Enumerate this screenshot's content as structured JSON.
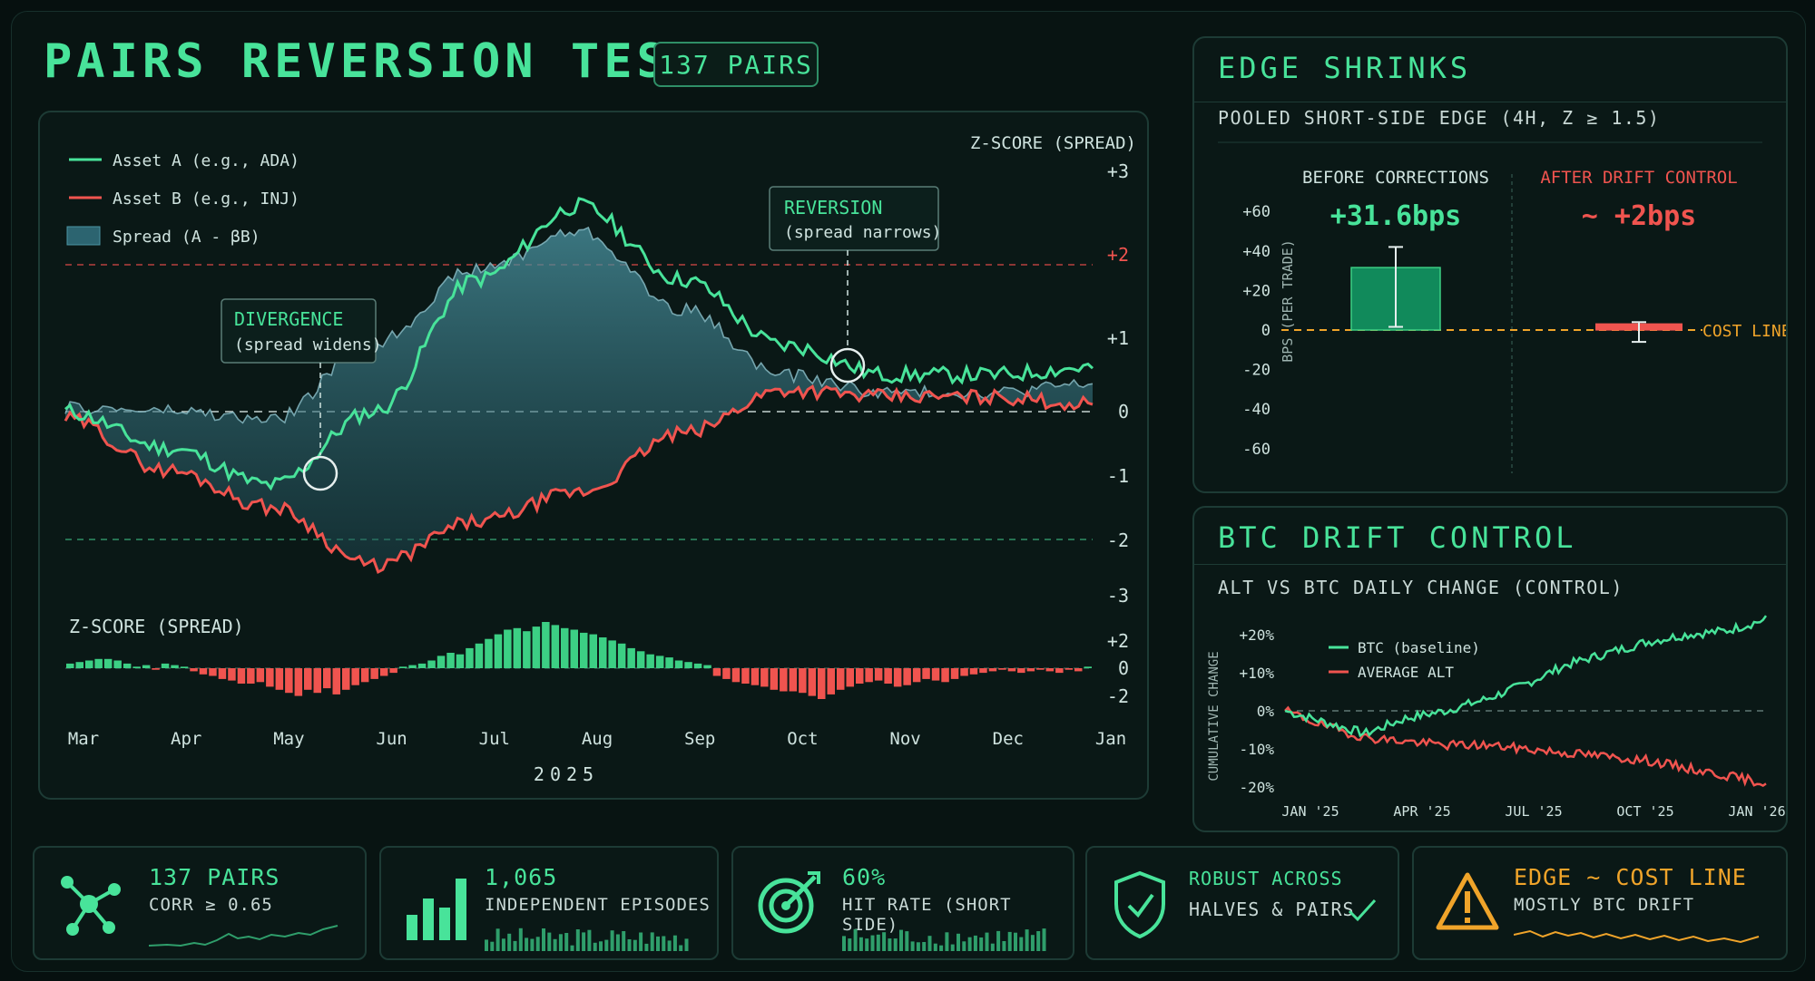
{
  "header": {
    "title": "PAIRS REVERSION TEST",
    "badge": "137 PAIRS"
  },
  "colors": {
    "green": "#48e39a",
    "red": "#f0544f",
    "orange": "#f0a42a",
    "spread_fill": "#3d7f8c",
    "grid": "#33524c"
  },
  "main_chart": {
    "legend": [
      "Asset A (e.g., ADA)",
      "Asset B (e.g., INJ)",
      "Spread (A - βB)"
    ],
    "axis_title": "Z-SCORE (SPREAD)",
    "yticks": [
      "+3",
      "+2",
      "+1",
      "0",
      "-1",
      "-2",
      "-3"
    ],
    "divergence": {
      "title": "DIVERGENCE",
      "sub": "(spread widens)"
    },
    "reversion": {
      "title": "REVERSION",
      "sub": "(spread narrows)"
    },
    "sub_title": "Z-SCORE (SPREAD)",
    "sub_yticks": [
      "+2",
      "0",
      "-2"
    ],
    "xticks": [
      "Mar",
      "Apr",
      "May",
      "Jun",
      "Jul",
      "Aug",
      "Sep",
      "Oct",
      "Nov",
      "Dec",
      "Jan"
    ],
    "year": "2025"
  },
  "edge_panel": {
    "title": "EDGE SHRINKS",
    "subtitle": "POOLED SHORT-SIDE EDGE (4H, Z ≥ 1.5)",
    "before_label": "BEFORE CORRECTIONS",
    "before_value": "+31.6bps",
    "after_label": "AFTER DRIFT CONTROL",
    "after_value": "~ +2bps",
    "ylabel": "BPS (PER TRADE)",
    "yticks": [
      "+60",
      "+40",
      "+20",
      "0",
      "-20",
      "-40",
      "-60"
    ],
    "cost_line": "COST LINE"
  },
  "btc_panel": {
    "title": "BTC DRIFT CONTROL",
    "subtitle": "ALT VS BTC DAILY CHANGE (CONTROL)",
    "ylabel": "CUMULATIVE CHANGE",
    "yticks": [
      "+20%",
      "+10%",
      "0%",
      "-10%",
      "-20%"
    ],
    "xticks": [
      "JAN '25",
      "APR '25",
      "JUL '25",
      "OCT '25",
      "JAN '26"
    ],
    "legend": [
      "BTC (baseline)",
      "AVERAGE ALT"
    ]
  },
  "tiles": [
    {
      "main": "137 PAIRS",
      "sub": "CORR ≥ 0.65",
      "icon": "network-icon"
    },
    {
      "main": "1,065",
      "sub": "INDEPENDENT EPISODES",
      "icon": "bar-chart-icon"
    },
    {
      "main": "60%",
      "sub": "HIT RATE (SHORT SIDE)",
      "icon": "target-icon"
    },
    {
      "main": "ROBUST ACROSS",
      "sub": "HALVES & PAIRS",
      "icon": "shield-icon"
    },
    {
      "main": "EDGE ~ COST LINE",
      "sub": "MOSTLY BTC DRIFT",
      "icon": "warning-icon"
    }
  ],
  "chart_data": [
    {
      "type": "line",
      "ylabel": "Z-SCORE (SPREAD)",
      "x": [
        "Mar",
        "Apr",
        "May",
        "Jun",
        "Jul",
        "Aug",
        "Sep",
        "Oct",
        "Nov",
        "Dec",
        "Jan"
      ],
      "series": [
        {
          "name": "Asset A (e.g., ADA)",
          "values": [
            0.0,
            -0.5,
            -1.0,
            0.0,
            1.8,
            2.8,
            1.8,
            0.9,
            0.5,
            0.5,
            0.6
          ]
        },
        {
          "name": "Asset B (e.g., INJ)",
          "values": [
            -0.1,
            -0.8,
            -1.3,
            -2.1,
            -1.5,
            -1.1,
            -0.3,
            0.3,
            0.2,
            0.2,
            0.1
          ]
        },
        {
          "name": "Spread (A - βB)",
          "values": [
            0.1,
            0.3,
            0.3,
            2.1,
            3.3,
            3.9,
            2.1,
            0.6,
            0.3,
            0.3,
            0.5
          ]
        }
      ],
      "ylim": [
        -3,
        3
      ],
      "legend": "top-left"
    },
    {
      "type": "bar",
      "ylabel": "Z-SCORE (SPREAD)",
      "values": [
        0.3,
        0.4,
        0.5,
        0.6,
        0.6,
        0.5,
        0.3,
        0.1,
        0.2,
        -0.1,
        0.3,
        0.2,
        0.1,
        -0.2,
        -0.4,
        -0.5,
        -0.7,
        -0.8,
        -1.0,
        -1.0,
        -0.9,
        -1.2,
        -1.4,
        -1.6,
        -1.8,
        -1.4,
        -1.6,
        -1.3,
        -1.7,
        -1.4,
        -1.1,
        -0.9,
        -0.7,
        -0.5,
        -0.3,
        0.1,
        0.2,
        0.3,
        0.5,
        0.8,
        1.0,
        0.9,
        1.3,
        1.6,
        1.9,
        2.2,
        2.5,
        2.6,
        2.4,
        2.7,
        3.0,
        2.8,
        2.6,
        2.5,
        2.3,
        2.2,
        2.0,
        1.8,
        1.6,
        1.3,
        1.1,
        0.9,
        0.8,
        0.7,
        0.5,
        0.4,
        0.3,
        0.2,
        -0.5,
        -0.7,
        -0.9,
        -1.0,
        -1.1,
        -1.2,
        -1.4,
        -1.5,
        -1.5,
        -1.6,
        -1.8,
        -2.0,
        -1.7,
        -1.4,
        -1.2,
        -1.0,
        -0.9,
        -0.8,
        -1.0,
        -1.2,
        -1.1,
        -0.9,
        -0.7,
        -0.8,
        -0.9,
        -0.7,
        -0.5,
        -0.4,
        -0.3,
        -0.2,
        -0.1,
        -0.2,
        -0.3,
        -0.2,
        -0.1,
        -0.2,
        -0.3,
        -0.1,
        -0.2,
        0.1
      ],
      "ylim": [
        -2.6,
        3.2
      ]
    },
    {
      "type": "bar",
      "title": "EDGE SHRINKS",
      "ylabel": "BPS (PER TRADE)",
      "categories": [
        "BEFORE CORRECTIONS",
        "AFTER DRIFT CONTROL"
      ],
      "values": [
        31.6,
        2
      ],
      "error_low": [
        1.6,
        -6
      ],
      "error_high": [
        42,
        4
      ],
      "reference_line": 0,
      "ylim": [
        -60,
        60
      ]
    },
    {
      "type": "line",
      "title": "BTC DRIFT CONTROL",
      "ylabel": "CUMULATIVE CHANGE",
      "x": [
        "JAN '25",
        "FEB '25",
        "MAR '25",
        "APR '25",
        "MAY '25",
        "JUN '25",
        "JUL '25",
        "AUG '25",
        "SEP '25",
        "OCT '25",
        "NOV '25",
        "DEC '25",
        "JAN '26"
      ],
      "series": [
        {
          "name": "BTC (baseline)",
          "values": [
            0,
            -3,
            -6,
            -2,
            0,
            3,
            7,
            12,
            15,
            18,
            20,
            21,
            24
          ]
        },
        {
          "name": "AVERAGE ALT",
          "values": [
            0,
            -4,
            -7,
            -8,
            -9,
            -9,
            -10,
            -11,
            -12,
            -13,
            -15,
            -17,
            -19
          ]
        }
      ],
      "ylim": [
        -22,
        26
      ],
      "legend": "top-left"
    }
  ]
}
